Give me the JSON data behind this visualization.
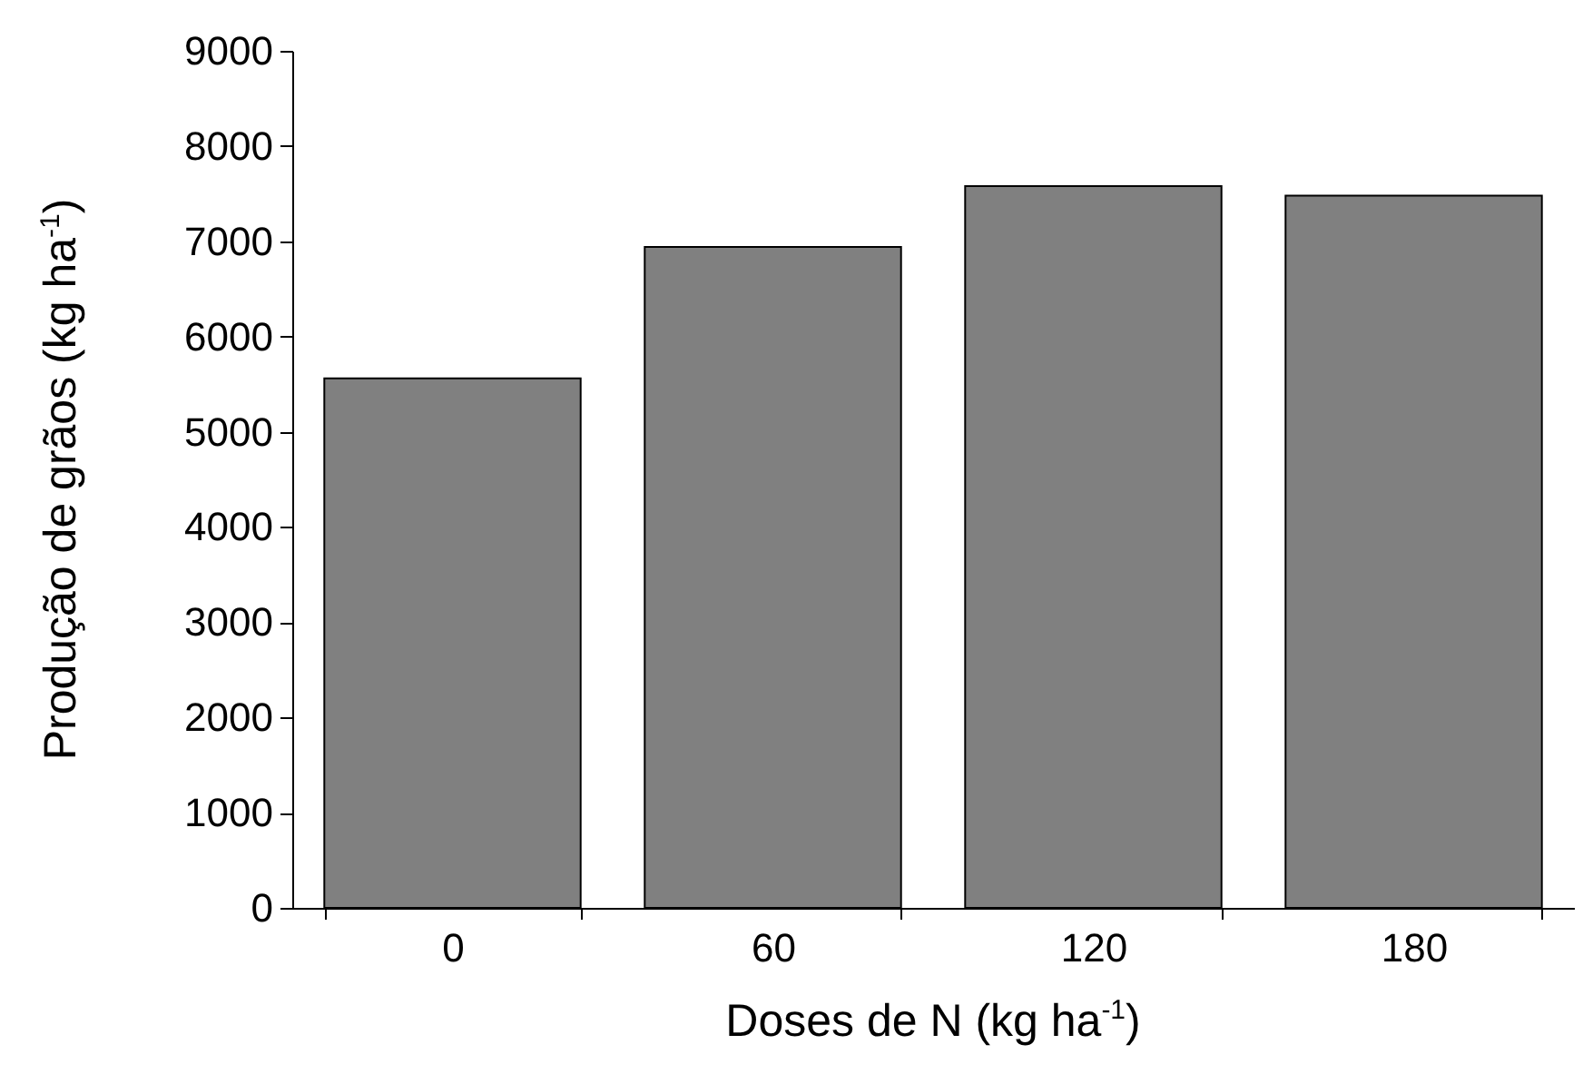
{
  "chart_data": {
    "type": "bar",
    "xlabel": "Doses de N (kg ha$^{-1}$)",
    "ylabel": "Produção de grãos (kg ha$^{-1}$)",
    "categories": [
      "0",
      "60",
      "120",
      "180"
    ],
    "values": [
      5560,
      6940,
      7580,
      7480
    ],
    "color": "#808080",
    "ylim": [
      0,
      9000
    ],
    "yticks": [
      0,
      1000,
      2000,
      3000,
      4000,
      5000,
      6000,
      7000,
      8000,
      9000
    ],
    "grid": false
  }
}
